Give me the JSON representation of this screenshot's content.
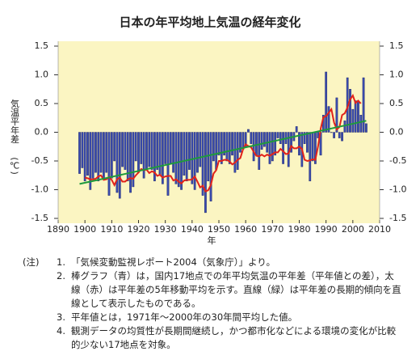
{
  "chart_data": {
    "type": "bar",
    "title": "日本の年平均地上気温の経年変化",
    "xlabel": "年",
    "ylabel": "気温平年差",
    "yunit": "(℃)",
    "x": [
      1898,
      1899,
      1900,
      1901,
      1902,
      1903,
      1904,
      1905,
      1906,
      1907,
      1908,
      1909,
      1910,
      1911,
      1912,
      1913,
      1914,
      1915,
      1916,
      1917,
      1918,
      1919,
      1920,
      1921,
      1922,
      1923,
      1924,
      1925,
      1926,
      1927,
      1928,
      1929,
      1930,
      1931,
      1932,
      1933,
      1934,
      1935,
      1936,
      1937,
      1938,
      1939,
      1940,
      1941,
      1942,
      1943,
      1944,
      1945,
      1946,
      1947,
      1948,
      1949,
      1950,
      1951,
      1952,
      1953,
      1954,
      1955,
      1956,
      1957,
      1958,
      1959,
      1960,
      1961,
      1962,
      1963,
      1964,
      1965,
      1966,
      1967,
      1968,
      1969,
      1970,
      1971,
      1972,
      1973,
      1974,
      1975,
      1976,
      1977,
      1978,
      1979,
      1980,
      1981,
      1982,
      1983,
      1984,
      1985,
      1986,
      1987,
      1988,
      1989,
      1990,
      1991,
      1992,
      1993,
      1994,
      1995,
      1996,
      1997,
      1998,
      1999,
      2000,
      2001,
      2002,
      2003,
      2004,
      2005
    ],
    "series": [
      {
        "type": "bar",
        "color": "#3a4cb0",
        "values": [
          -0.72,
          -0.62,
          -0.85,
          -0.75,
          -1.0,
          -0.8,
          -0.7,
          -0.85,
          -0.7,
          -0.8,
          -0.7,
          -1.1,
          -0.8,
          -0.5,
          -1.05,
          -1.15,
          -0.6,
          -0.65,
          -0.85,
          -1.05,
          -0.95,
          -0.5,
          -0.7,
          -0.55,
          -0.8,
          -0.65,
          -0.6,
          -0.65,
          -0.85,
          -0.65,
          -0.75,
          -0.9,
          -0.55,
          -1.1,
          -0.55,
          -0.7,
          -0.9,
          -0.95,
          -1.0,
          -0.75,
          -0.85,
          -0.65,
          -0.9,
          -1.0,
          -0.7,
          -0.6,
          -1.1,
          -1.4,
          -0.85,
          -1.2,
          -0.5,
          -0.65,
          -0.4,
          -0.55,
          -0.4,
          -0.5,
          -0.55,
          -0.4,
          -0.7,
          -0.65,
          -0.35,
          -0.3,
          -0.25,
          0.05,
          -0.2,
          -0.5,
          -0.4,
          -0.65,
          -0.3,
          -0.25,
          -0.35,
          -0.55,
          -0.5,
          -0.4,
          -0.1,
          -0.2,
          -0.55,
          -0.2,
          -0.6,
          -0.35,
          -0.15,
          0.1,
          -0.4,
          -0.6,
          -0.2,
          -0.35,
          -0.85,
          -0.5,
          -0.55,
          -0.1,
          -0.4,
          0.3,
          1.05,
          0.45,
          0.0,
          -0.1,
          0.6,
          -0.1,
          -0.15,
          0.2,
          0.95,
          0.75,
          0.4,
          0.55,
          0.55,
          0.3,
          0.95,
          0.15
        ]
      },
      {
        "type": "line",
        "color": "#e2231a",
        "values": [
          null,
          null,
          -0.79,
          -0.8,
          -0.82,
          -0.82,
          -0.81,
          -0.77,
          -0.75,
          -0.83,
          -0.82,
          -0.78,
          -0.83,
          -0.92,
          -0.82,
          -0.79,
          -0.86,
          -0.86,
          -0.82,
          -0.8,
          -0.81,
          -0.75,
          -0.7,
          -0.64,
          -0.66,
          -0.65,
          -0.71,
          -0.68,
          -0.7,
          -0.76,
          -0.74,
          -0.79,
          -0.77,
          -0.76,
          -0.76,
          -0.84,
          -0.82,
          -0.86,
          -0.89,
          -0.84,
          -0.83,
          -0.83,
          -0.82,
          -0.77,
          -0.86,
          -0.96,
          -0.93,
          -1.03,
          -1.01,
          -0.92,
          -0.72,
          -0.66,
          -0.5,
          -0.5,
          -0.48,
          -0.48,
          -0.51,
          -0.56,
          -0.53,
          -0.48,
          -0.45,
          -0.3,
          -0.21,
          -0.24,
          -0.26,
          -0.34,
          -0.41,
          -0.42,
          -0.39,
          -0.42,
          -0.39,
          -0.41,
          -0.38,
          -0.35,
          -0.35,
          -0.29,
          -0.33,
          -0.38,
          -0.37,
          -0.24,
          -0.28,
          -0.28,
          -0.25,
          -0.29,
          -0.48,
          -0.5,
          -0.49,
          -0.47,
          -0.48,
          -0.25,
          0.06,
          0.26,
          0.28,
          0.34,
          0.4,
          0.17,
          0.05,
          0.09,
          0.3,
          0.33,
          0.43,
          0.57,
          0.64,
          0.51,
          0.55,
          0.5,
          null,
          null
        ]
      },
      {
        "type": "line",
        "color": "#1e9a3c",
        "x": [
          1898,
          2005
        ],
        "values": [
          -0.9,
          0.2
        ]
      }
    ],
    "xlim": [
      1890,
      2010
    ],
    "xticks": [
      1890,
      1900,
      1910,
      1920,
      1930,
      1940,
      1950,
      1960,
      1970,
      1980,
      1990,
      2000,
      2010
    ],
    "ylim": [
      -1.5,
      1.5
    ],
    "yticks": [
      1.5,
      {
        "value": 1,
        "label": "1.0"
      },
      0.5,
      {
        "value": 0,
        "label": "0.0"
      },
      -0.5,
      {
        "value": -1,
        "label": "-1.0"
      },
      -1.5
    ],
    "y2lim": [
      -1.5,
      1.5
    ],
    "y2ticks": [
      1.5,
      {
        "value": 1,
        "label": "1.0"
      },
      0.5,
      {
        "value": 0,
        "label": "0.0"
      },
      -0.5,
      {
        "value": -1,
        "label": "-1.0"
      },
      -1.5
    ],
    "background": "#fbf5c2"
  },
  "notes": {
    "label": "(注)",
    "items": [
      {
        "number": "1.",
        "text": "「気候変動監視レポート2004（気象庁）」より。"
      },
      {
        "number": "2.",
        "text": "棒グラフ（青）は，国内17地点での年平均気温の平年差（平年値との差），太線（赤）は平年差の5年移動平均を示す。直線（緑）は平年差の長期的傾向を直線として表示したものである。"
      },
      {
        "number": "3.",
        "text": "平年値とは，1971年～2000年の30年間平均した値。"
      },
      {
        "number": "4.",
        "text": "観測データの均質性が長期間継続し，かつ都市化などによる環境の変化が比較的少ない17地点を対象。"
      }
    ]
  }
}
